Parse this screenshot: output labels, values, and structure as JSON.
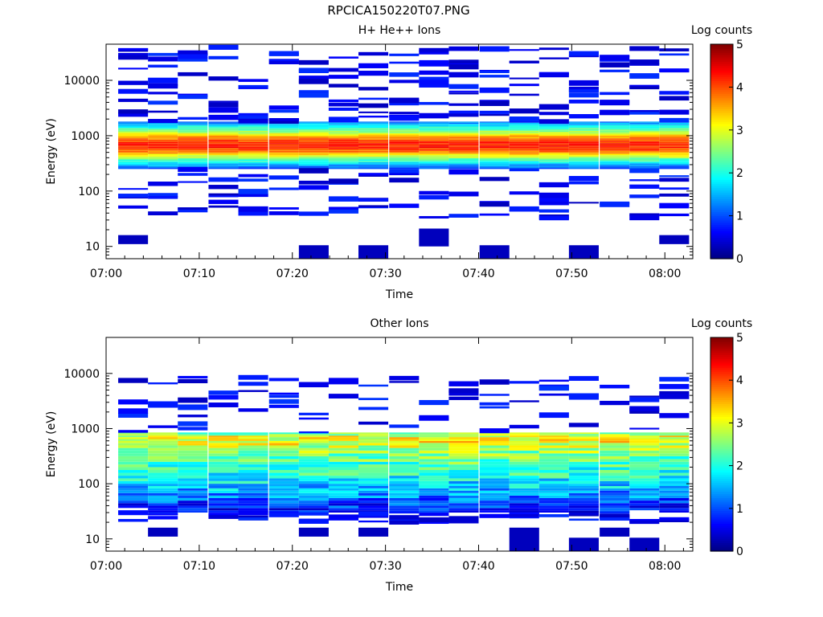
{
  "figure_title": "RPCICA150220T07.PNG",
  "chart_data": [
    {
      "type": "heatmap",
      "title": "H+ He++ Ions",
      "xlabel": "Time",
      "ylabel": "Energy (eV)",
      "x_ticks": [
        "07:00",
        "07:10",
        "07:20",
        "07:30",
        "07:40",
        "07:50",
        "08:00"
      ],
      "x_range_minutes": [
        0,
        63
      ],
      "y_scale": "log",
      "y_ticks": [
        "10",
        "100",
        "1000",
        "10000"
      ],
      "y_range": [
        6,
        45000
      ],
      "colorbar": {
        "label": "Log counts",
        "ticks": [
          "0",
          "1",
          "2",
          "3",
          "4",
          "5"
        ],
        "range": [
          0,
          5
        ],
        "colormap": "jet"
      },
      "time_bins_start_minutes": [
        1.3,
        4.5,
        7.7,
        11.0,
        14.2,
        17.5,
        20.7,
        23.9,
        27.1,
        30.4,
        33.6,
        36.8,
        40.1,
        43.3,
        46.5,
        49.7,
        53.0,
        56.2,
        59.4
      ],
      "bin_width_minutes": 3.2,
      "main_band": {
        "energy_eV": [
          250,
          300,
          350,
          420,
          500,
          600,
          700,
          800,
          950,
          1100,
          1300,
          1550,
          1800
        ],
        "log_counts_profile": [
          1.0,
          1.6,
          2.2,
          3.0,
          3.8,
          4.2,
          4.2,
          4.0,
          3.5,
          2.8,
          2.2,
          1.6,
          1.0
        ]
      },
      "sparse_counts_log": 0.3,
      "low_energy_blocks": [
        {
          "time_bin": 0,
          "energy_eV": [
            11,
            16
          ]
        },
        {
          "time_bin": 6,
          "energy_eV": [
            6,
            10.5
          ]
        },
        {
          "time_bin": 8,
          "energy_eV": [
            6,
            10.5
          ]
        },
        {
          "time_bin": 10,
          "energy_eV": [
            10,
            21
          ]
        },
        {
          "time_bin": 12,
          "energy_eV": [
            6,
            10.5
          ]
        },
        {
          "time_bin": 15,
          "energy_eV": [
            6,
            10.5
          ]
        },
        {
          "time_bin": 18,
          "energy_eV": [
            11,
            16
          ]
        }
      ]
    },
    {
      "type": "heatmap",
      "title": "Other Ions",
      "xlabel": "Time",
      "ylabel": "Energy (eV)",
      "x_ticks": [
        "07:00",
        "07:10",
        "07:20",
        "07:30",
        "07:40",
        "07:50",
        "08:00"
      ],
      "x_range_minutes": [
        0,
        63
      ],
      "y_scale": "log",
      "y_ticks": [
        "10",
        "100",
        "1000",
        "10000"
      ],
      "y_range": [
        6,
        45000
      ],
      "colorbar": {
        "label": "Log counts",
        "ticks": [
          "0",
          "1",
          "2",
          "3",
          "4",
          "5"
        ],
        "range": [
          0,
          5
        ],
        "colormap": "jet"
      },
      "time_bins_start_minutes": [
        1.3,
        4.5,
        7.7,
        11.0,
        14.2,
        17.5,
        20.7,
        23.9,
        27.1,
        30.4,
        33.6,
        36.8,
        40.1,
        43.3,
        46.5,
        49.7,
        53.0,
        56.2,
        59.4
      ],
      "bin_width_minutes": 3.2,
      "main_band": {
        "energy_eV": [
          30,
          40,
          55,
          75,
          100,
          140,
          200,
          280,
          400,
          550,
          700,
          850
        ],
        "log_counts_profile": [
          0.6,
          0.9,
          1.2,
          1.5,
          1.8,
          2.0,
          2.2,
          2.4,
          2.7,
          3.1,
          3.0,
          2.2
        ]
      },
      "sparse_counts_log": 0.3,
      "low_energy_blocks": [
        {
          "time_bin": 1,
          "energy_eV": [
            11,
            16
          ]
        },
        {
          "time_bin": 6,
          "energy_eV": [
            11,
            16
          ]
        },
        {
          "time_bin": 8,
          "energy_eV": [
            11,
            16
          ]
        },
        {
          "time_bin": 13,
          "energy_eV": [
            6,
            16
          ]
        },
        {
          "time_bin": 15,
          "energy_eV": [
            6,
            10.5
          ]
        },
        {
          "time_bin": 16,
          "energy_eV": [
            11,
            16
          ]
        },
        {
          "time_bin": 17,
          "energy_eV": [
            6,
            10.5
          ]
        }
      ]
    }
  ]
}
